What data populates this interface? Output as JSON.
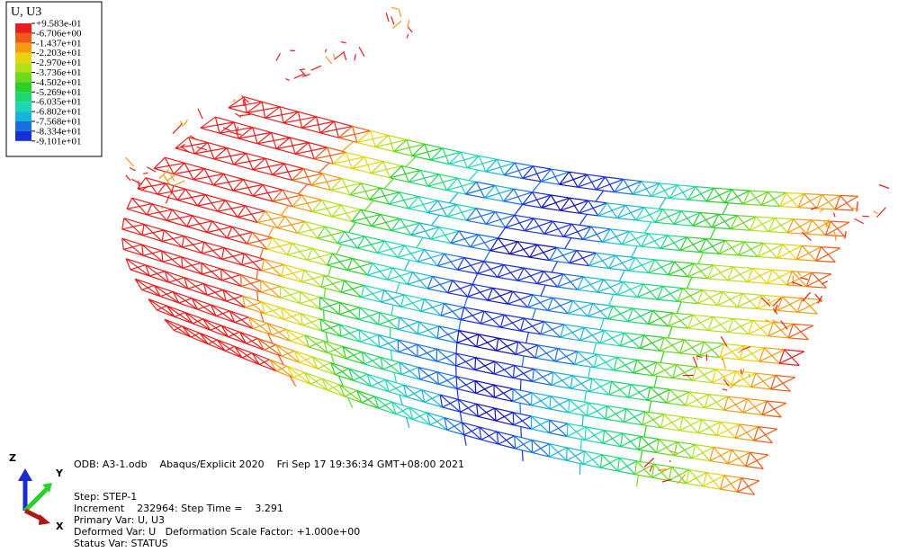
{
  "legend": {
    "title": "U, U3",
    "labels": [
      "+9.583e-01",
      "-6.706e+00",
      "-1.437e+01",
      "-2.203e+01",
      "-2.970e+01",
      "-3.736e+01",
      "-4.502e+01",
      "-5.269e+01",
      "-6.035e+01",
      "-6.802e+01",
      "-7.568e+01",
      "-8.334e+01",
      "-9.101e+01"
    ]
  },
  "triad": {
    "z": "Z",
    "y": "Y",
    "x": "X"
  },
  "info": {
    "odb": "ODB: A3-1.odb    Abaqus/Explicit 2020    Fri Sep 17 19:36:34 GMT+08:00 2021",
    "step": "Step: STEP-1",
    "increment": "Increment    232964: Step Time =    3.291",
    "primary": "Primary Var: U, U3",
    "deformed": "Deformed Var: U   Deformation Scale Factor: +1.000e+00",
    "status": "Status Var: STATUS"
  }
}
